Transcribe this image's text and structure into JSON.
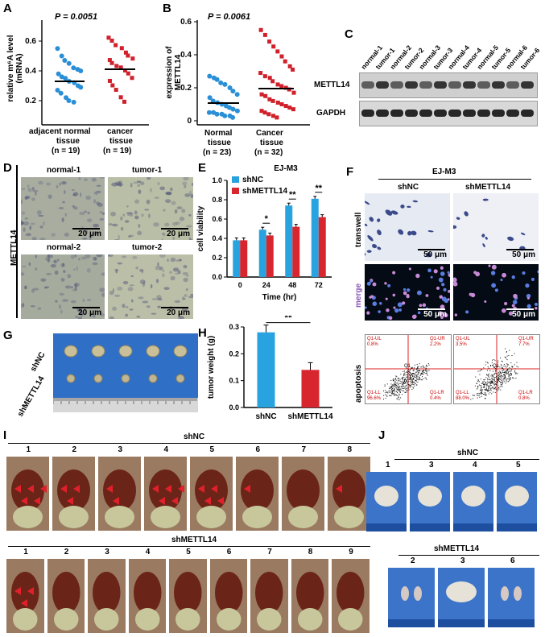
{
  "panels": {
    "A": {
      "label": "A",
      "pvalue": "P = 0.0051",
      "ylabel_line1": "relative m⁶A level",
      "ylabel_line2": "(mRNA)",
      "yticks": [
        "0.2",
        "0.4",
        "0.6"
      ],
      "groups": [
        {
          "name_line1": "adjacent normal",
          "name_line2": "tissue",
          "n": "(n = 19)",
          "color": "#2a8fd6"
        },
        {
          "name_line1": "cancer",
          "name_line2": "tissue",
          "n": "(n = 19)",
          "color": "#d0202b"
        }
      ]
    },
    "B": {
      "label": "B",
      "pvalue": "P = 0.0061",
      "ylabel_line1": "expression of",
      "ylabel_line2": "METTL14",
      "yticks": [
        "0",
        "0.2",
        "0.4",
        "0.6"
      ],
      "groups": [
        {
          "name_line1": "Normal",
          "name_line2": "tissue",
          "n": "(n = 23)",
          "color": "#2a8fd6"
        },
        {
          "name_line1": "Cancer",
          "name_line2": "tissue",
          "n": "(n = 32)",
          "color": "#d0202b"
        }
      ]
    },
    "C": {
      "label": "C",
      "lanes": [
        "normal-1",
        "tumor-1",
        "normal-2",
        "tumor-2",
        "normal-3",
        "tumor-3",
        "normal-4",
        "tumor-4",
        "normal-5",
        "tumor-5",
        "normal-6",
        "tumor-6"
      ],
      "bands": [
        "METTL14",
        "GAPDH"
      ]
    },
    "D": {
      "label": "D",
      "side_label": "METTL14",
      "images": [
        {
          "title": "normal-1",
          "scale": "20 μm"
        },
        {
          "title": "tumor-1",
          "scale": "20 μm"
        },
        {
          "title": "normal-2",
          "scale": "20 μm"
        },
        {
          "title": "tumor-2",
          "scale": "20 μm"
        }
      ]
    },
    "E": {
      "label": "E"
    },
    "F": {
      "label": "F",
      "title": "EJ-M3",
      "columns": [
        "shNC",
        "shMETTL14"
      ],
      "rows": [
        "transwell",
        "merge",
        "apoptosis"
      ],
      "scale": "50 μm",
      "quadrants_left": {
        "ul": "Q1-UL",
        "ul_val": "0.8%",
        "ur": "Q1-UR",
        "ur_val": "2.2%",
        "ll": "Q1-LL",
        "ll_val": "96.6%",
        "lr": "Q1-LR",
        "lr_val": "0.4%",
        "center": "Q1"
      },
      "quadrants_right": {
        "ul": "Q1-UL",
        "ul_val": "3.5%",
        "ur": "Q1-UR",
        "ur_val": "7.7%",
        "ll": "Q1-LL",
        "ll_val": "88.0%",
        "lr": "Q1-LR",
        "lr_val": "0.8%",
        "center": "Q1"
      }
    },
    "G": {
      "label": "G",
      "rows": [
        "shNC",
        "shMETTL14"
      ]
    },
    "H": {
      "label": "H"
    },
    "I": {
      "label": "I",
      "top_title": "shNC",
      "top_numbers": [
        "1",
        "2",
        "3",
        "4",
        "5",
        "6",
        "7",
        "8"
      ],
      "bottom_title": "shMETTL14",
      "bottom_numbers": [
        "1",
        "2",
        "3",
        "4",
        "5",
        "6",
        "7",
        "8",
        "9"
      ]
    },
    "J": {
      "label": "J",
      "top_title": "shNC",
      "top_numbers": [
        "1",
        "3",
        "4",
        "5"
      ],
      "bottom_title": "shMETTL14",
      "bottom_numbers": [
        "2",
        "3",
        "6"
      ]
    }
  },
  "chart_data": [
    {
      "type": "bar",
      "title": "EJ-M3",
      "xlabel": "Time (hr)",
      "ylabel": "cell viability",
      "categories": [
        "0",
        "24",
        "48",
        "72"
      ],
      "ylim": [
        0,
        1.0
      ],
      "yticks": [
        "0.0",
        "0.2",
        "0.4",
        "0.6",
        "0.8",
        "1.0"
      ],
      "legend": "top-left",
      "series": [
        {
          "name": "shNC",
          "color": "#29a3e0",
          "values": [
            0.38,
            0.49,
            0.74,
            0.81
          ]
        },
        {
          "name": "shMETTL14",
          "color": "#d7262e",
          "values": [
            0.38,
            0.43,
            0.52,
            0.62
          ]
        }
      ],
      "significance": [
        "",
        "*",
        "**",
        "**"
      ]
    },
    {
      "type": "bar",
      "title": "",
      "xlabel": "",
      "ylabel": "tumor weight (g)",
      "categories": [
        "shNC",
        "shMETTL14"
      ],
      "ylim": [
        0,
        0.3
      ],
      "yticks": [
        "0.0",
        "0.1",
        "0.2",
        "0.3"
      ],
      "series": [
        {
          "name": "",
          "values": [
            0.28,
            0.14
          ],
          "colors": [
            "#29a3e0",
            "#d7262e"
          ]
        }
      ],
      "significance": "**"
    }
  ]
}
